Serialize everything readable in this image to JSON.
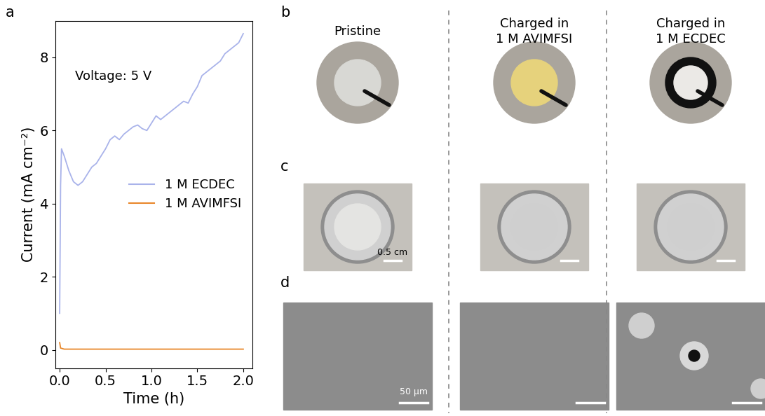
{
  "chart_data": {
    "type": "line",
    "annotation": "Voltage: 5 V",
    "x_label": "Time (h)",
    "y_label": "Current (mA cm⁻²)",
    "xlim": [
      -0.05,
      2.1
    ],
    "ylim": [
      -0.5,
      9.0
    ],
    "xticks": [
      {
        "value": 0,
        "label": "0.0"
      },
      {
        "value": 0.5,
        "label": "0.5"
      },
      {
        "value": 1,
        "label": "1.0"
      },
      {
        "value": 1.5,
        "label": "1.5"
      },
      {
        "value": 2,
        "label": "2.0"
      }
    ],
    "yticks": [
      0,
      2,
      4,
      6,
      8
    ],
    "legend": "center right",
    "series": [
      {
        "name": "1 M ECDEC",
        "color": "#a9b3ea",
        "x": [
          0,
          0.01,
          0.02,
          0.05,
          0.1,
          0.15,
          0.2,
          0.25,
          0.3,
          0.35,
          0.4,
          0.45,
          0.5,
          0.55,
          0.6,
          0.65,
          0.7,
          0.8,
          0.85,
          0.9,
          0.95,
          1.0,
          1.05,
          1.1,
          1.15,
          1.2,
          1.25,
          1.3,
          1.35,
          1.4,
          1.45,
          1.5,
          1.55,
          1.6,
          1.65,
          1.7,
          1.75,
          1.8,
          1.85,
          1.9,
          1.95,
          2.0
        ],
        "values": [
          1.0,
          4.5,
          5.5,
          5.3,
          4.9,
          4.6,
          4.5,
          4.6,
          4.8,
          5.0,
          5.1,
          5.3,
          5.5,
          5.75,
          5.85,
          5.75,
          5.9,
          6.1,
          6.15,
          6.05,
          6.0,
          6.2,
          6.4,
          6.3,
          6.4,
          6.5,
          6.6,
          6.7,
          6.8,
          6.75,
          7.0,
          7.2,
          7.5,
          7.6,
          7.7,
          7.8,
          7.9,
          8.1,
          8.2,
          8.3,
          8.4,
          8.65
        ]
      },
      {
        "name": "1 M AVIMFSI",
        "color": "#e8872a",
        "x": [
          0,
          0.01,
          0.05,
          0.5,
          1.0,
          1.5,
          2.0
        ],
        "values": [
          0.2,
          0.05,
          0.02,
          0.02,
          0.02,
          0.02,
          0.02
        ]
      }
    ]
  },
  "panel_labels": [
    "a",
    "b",
    "c",
    "d"
  ],
  "columns": [
    "Pristine",
    "Charged in\n1 M AVIMFSI",
    "Charged in\n1 M ECDEC"
  ],
  "scale_bars": {
    "photo": "0.5 cm",
    "sem": "50 μm"
  }
}
